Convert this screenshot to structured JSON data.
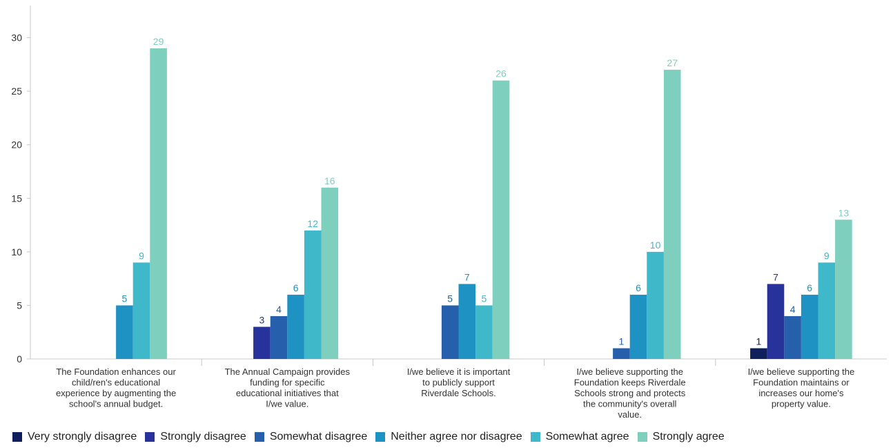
{
  "chart_data": {
    "type": "bar",
    "categories": [
      "The Foundation enhances our child/ren's educational experience by augmenting the school's annual budget.",
      "The Annual Campaign provides funding for specific educational initiatives that I/we value.",
      "I/we believe it is important to publicly support Riverdale Schools.",
      "I/we believe supporting the Foundation keeps Riverdale Schools strong and protects the community's overall value.",
      "I/we believe supporting the Foundation maintains or increases our home's property value."
    ],
    "category_lines": [
      [
        "The Foundation enhances our",
        "child/ren's educational",
        "experience by augmenting the",
        "school's annual budget."
      ],
      [
        "The Annual Campaign provides",
        "funding for specific",
        "educational initiatives that",
        "I/we value."
      ],
      [
        "I/we believe it is important",
        "to publicly support",
        "Riverdale Schools."
      ],
      [
        "I/we believe supporting the",
        "Foundation keeps Riverdale",
        "Schools strong and protects",
        "the community's overall",
        "value."
      ],
      [
        "I/we believe supporting the",
        "Foundation maintains or",
        "increases our home's",
        "property value."
      ]
    ],
    "series": [
      {
        "name": "Very strongly disagree",
        "color": "#0e1f5b",
        "values": [
          null,
          null,
          null,
          null,
          1
        ]
      },
      {
        "name": "Strongly disagree",
        "color": "#27339a",
        "values": [
          null,
          3,
          null,
          null,
          7
        ]
      },
      {
        "name": "Somewhat disagree",
        "color": "#2660ad",
        "values": [
          null,
          4,
          5,
          1,
          4
        ]
      },
      {
        "name": "Neither agree nor disagree",
        "color": "#1f92c4",
        "values": [
          5,
          6,
          7,
          6,
          6
        ]
      },
      {
        "name": "Somewhat agree",
        "color": "#3fb8c9",
        "values": [
          9,
          12,
          5,
          10,
          9
        ]
      },
      {
        "name": "Strongly agree",
        "color": "#7ecfbd",
        "values": [
          29,
          16,
          26,
          27,
          13
        ]
      }
    ],
    "yticks": [
      0,
      5,
      10,
      15,
      20,
      25,
      30
    ],
    "ylim": [
      0,
      33
    ],
    "grid": false,
    "legend": "bottom-left"
  }
}
